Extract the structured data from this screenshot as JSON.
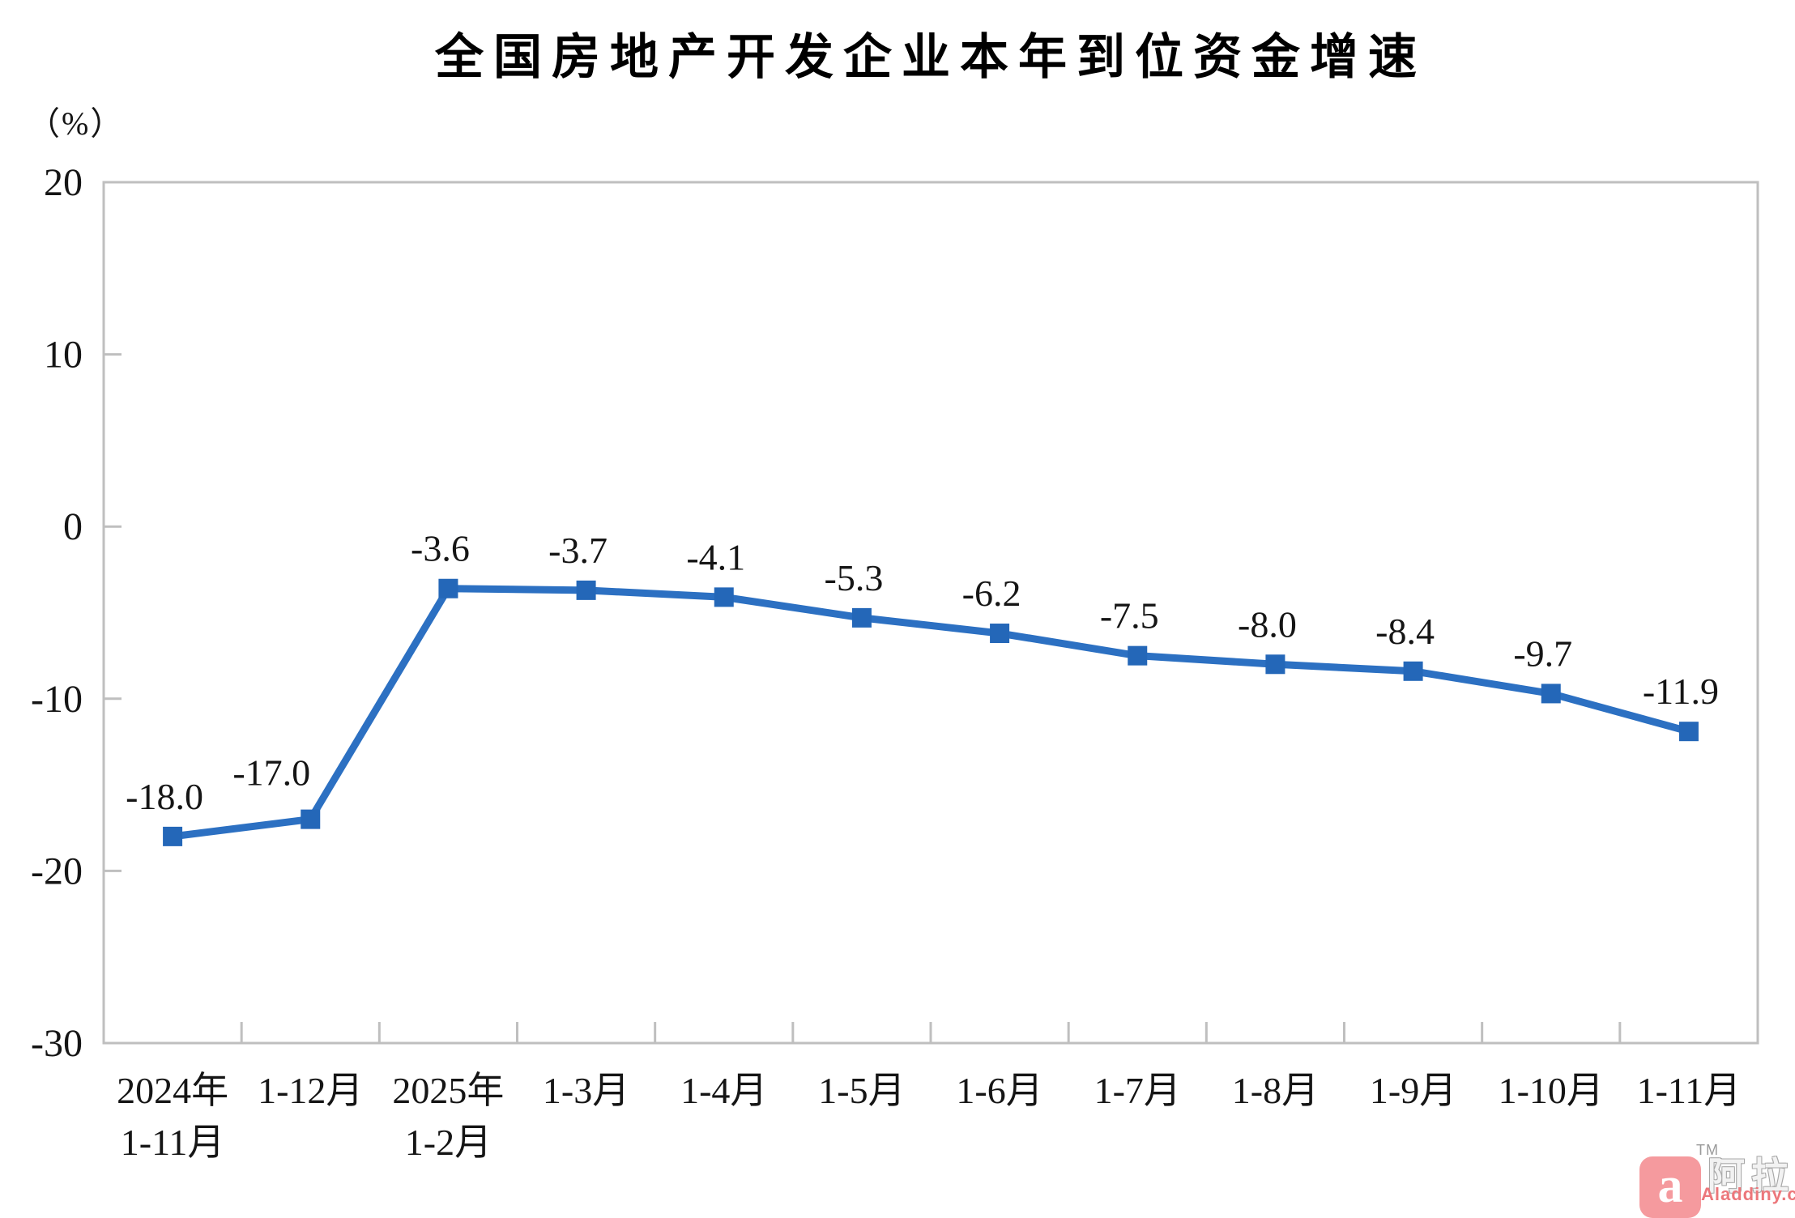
{
  "chart": {
    "title": "全国房地产开发企业本年到位资金增速",
    "unit_label": "（%）"
  },
  "chart_data": {
    "type": "line",
    "title": "全国房地产开发企业本年到位资金增速",
    "ylabel": "（%）",
    "ylim": [
      -30,
      20
    ],
    "yticks": [
      20,
      10,
      0,
      -10,
      -20,
      -30
    ],
    "grid": false,
    "legend": "none",
    "marker": "square",
    "line_color": "#2c70c2",
    "marker_color": "#2467b8",
    "axis_color": "#bfbfbf",
    "label_color": "#151515",
    "categories": [
      [
        "2024年",
        "1-11月"
      ],
      [
        "1-12月"
      ],
      [
        "2025年",
        "1-2月"
      ],
      [
        "1-3月"
      ],
      [
        "1-4月"
      ],
      [
        "1-5月"
      ],
      [
        "1-6月"
      ],
      [
        "1-7月"
      ],
      [
        "1-8月"
      ],
      [
        "1-9月"
      ],
      [
        "1-10月"
      ],
      [
        "1-11月"
      ]
    ],
    "values": [
      -18.0,
      -17.0,
      -3.6,
      -3.7,
      -4.1,
      -5.3,
      -6.2,
      -7.5,
      -8.0,
      -8.4,
      -9.7,
      -11.9
    ],
    "data_labels": [
      "-18.0",
      "-17.0",
      "-3.6",
      "-3.7",
      "-4.1",
      "-5.3",
      "-6.2",
      "-7.5",
      "-8.0",
      "-8.4",
      "-9.7",
      "-11.9"
    ]
  },
  "watermark": {
    "logo_letter": "a",
    "tm": "TM",
    "cn_text": "阿拉丁",
    "url": "Aladdiny.com",
    "brand_red": "#f59a9e"
  }
}
